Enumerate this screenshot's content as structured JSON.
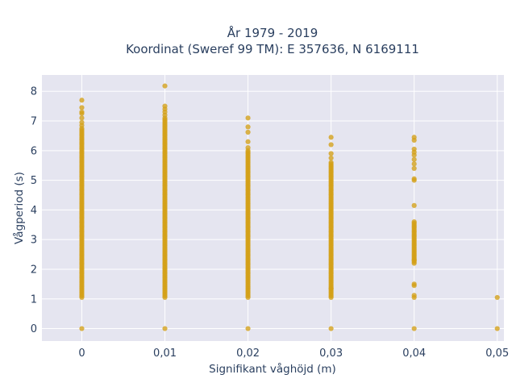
{
  "chart_data": {
    "type": "scatter",
    "title": "År 1979 - 2019",
    "subtitle": "Koordinat (Sweref 99 TM): E 357636, N 6169111",
    "xlabel": "Signifikant våghöjd (m)",
    "ylabel": "Vågperiod (s)",
    "xlim": [
      -0.0048,
      0.0508
    ],
    "ylim": [
      -0.42,
      8.55
    ],
    "x_ticks": [
      0,
      0.01,
      0.02,
      0.03,
      0.04,
      0.05
    ],
    "x_tick_labels": [
      "0",
      "0,01",
      "0,02",
      "0,03",
      "0,04",
      "0,05"
    ],
    "y_ticks": [
      0,
      1,
      2,
      3,
      4,
      5,
      6,
      7,
      8
    ],
    "y_tick_labels": [
      "0",
      "1",
      "2",
      "3",
      "4",
      "5",
      "6",
      "7",
      "8"
    ],
    "grid": true,
    "legend": "none",
    "colors": {
      "marker": "#d4a017",
      "plot_bg": "#e5e5f0",
      "grid": "#ffffff",
      "text": "#2a3f5f"
    },
    "columns": [
      {
        "x": 0.0,
        "range": [
          1.05,
          6.75
        ],
        "extra": [
          0.0,
          6.85,
          6.95,
          7.1,
          7.25,
          7.3,
          7.45,
          7.7
        ]
      },
      {
        "x": 0.01,
        "range": [
          1.05,
          7.1
        ],
        "extra": [
          0.0,
          7.2,
          7.3,
          7.4,
          7.5,
          8.18
        ]
      },
      {
        "x": 0.02,
        "range": [
          1.05,
          6.0
        ],
        "extra": [
          0.0,
          6.1,
          6.3,
          6.62,
          6.8,
          7.1
        ]
      },
      {
        "x": 0.03,
        "range": [
          1.05,
          5.6
        ],
        "extra": [
          0.0,
          1.35,
          5.75,
          5.9,
          6.2,
          6.45
        ]
      },
      {
        "x": 0.04,
        "range": [
          2.2,
          3.6
        ],
        "extra": [
          0.0,
          1.05,
          1.12,
          1.45,
          1.5,
          2.3,
          4.15,
          5.0,
          5.05,
          5.4,
          5.55,
          5.7,
          5.85,
          5.95,
          6.05,
          6.35,
          6.45
        ]
      },
      {
        "x": 0.05,
        "range": null,
        "extra": [
          0.0,
          1.05
        ]
      }
    ]
  }
}
